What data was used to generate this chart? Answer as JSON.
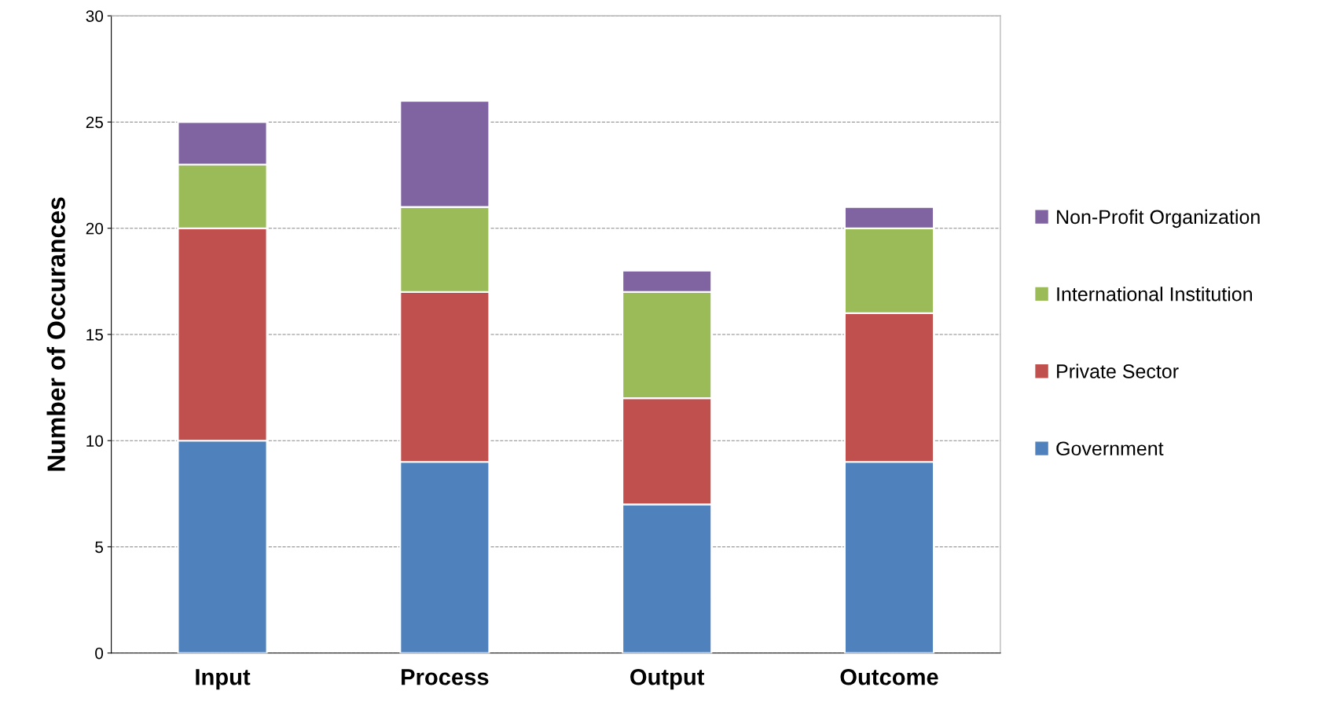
{
  "chart_data": {
    "type": "bar",
    "stacked": true,
    "ylabel": "Number of Occurances",
    "categories": [
      "Input",
      "Process",
      "Output",
      "Outcome"
    ],
    "series": [
      {
        "name": "Government",
        "color": "#4f81bd",
        "values": [
          10,
          9,
          7,
          9
        ]
      },
      {
        "name": "Private Sector",
        "color": "#c0504d",
        "values": [
          10,
          8,
          5,
          7
        ]
      },
      {
        "name": "International Institution",
        "color": "#9bbb59",
        "values": [
          3,
          4,
          5,
          4
        ]
      },
      {
        "name": "Non-Profit Organization",
        "color": "#8064a2",
        "values": [
          2,
          5,
          1,
          1
        ]
      }
    ],
    "ylim": [
      0,
      30
    ],
    "yticks": [
      0,
      5,
      10,
      15,
      20,
      25,
      30
    ],
    "grid": "y",
    "legend": "right"
  }
}
